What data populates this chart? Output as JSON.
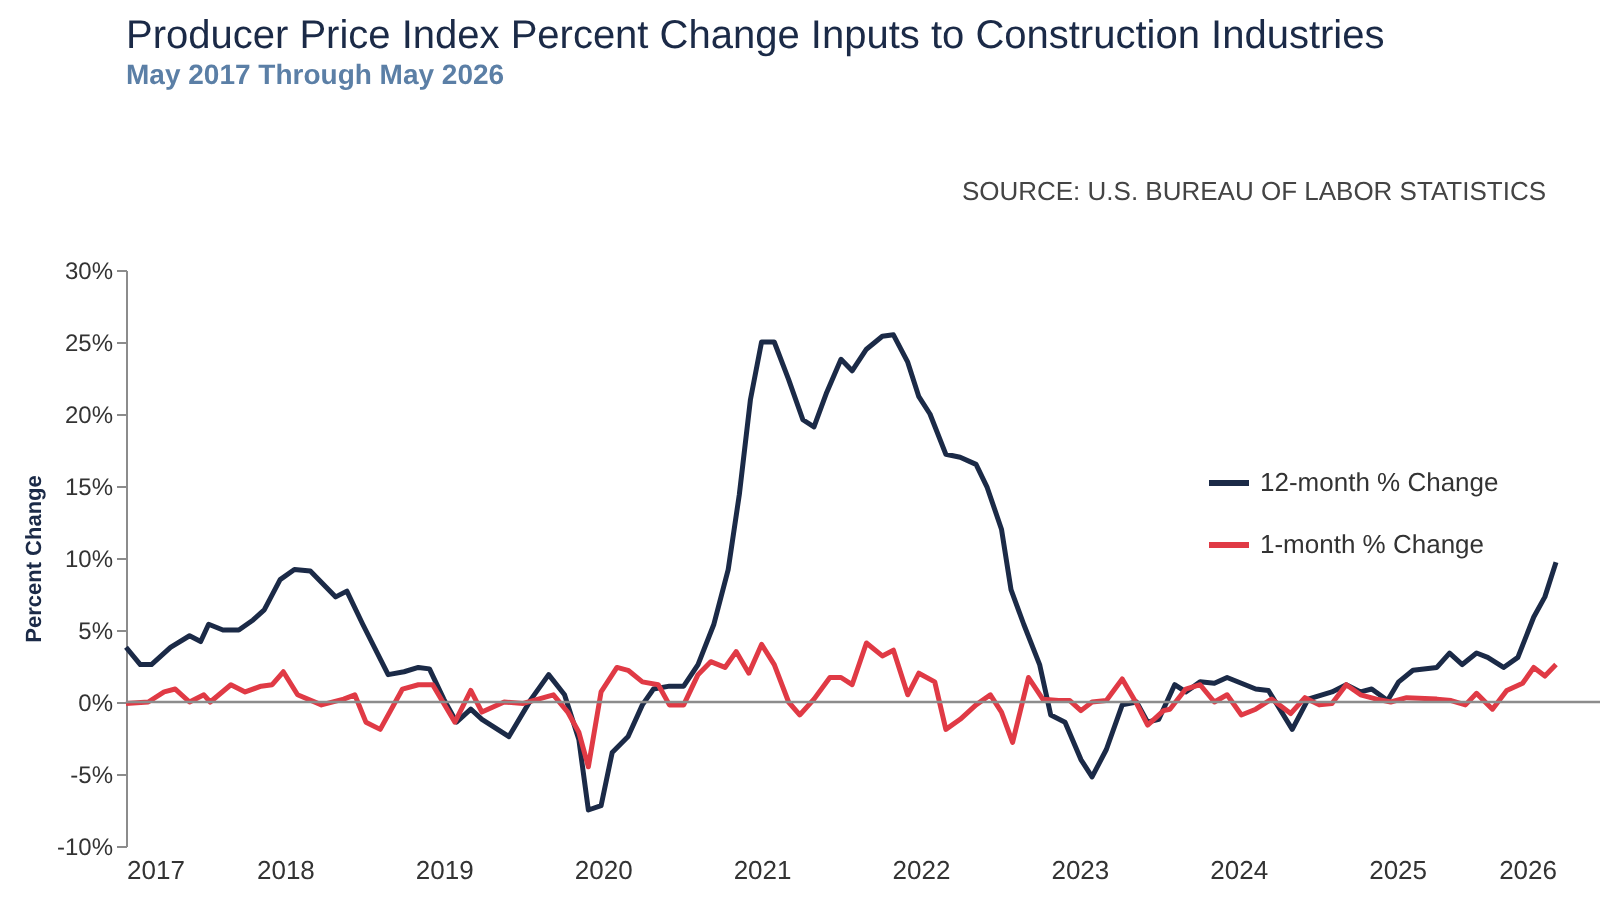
{
  "chart_data": {
    "type": "line",
    "title": "Producer Price Index Percent Change Inputs to Construction Industries",
    "subtitle": "May 2017 Through May 2026",
    "annotations": [
      "SOURCE: U.S. BUREAU OF LABOR STATISTICS"
    ],
    "ylabel": "Percent Change",
    "xlim": [
      2017,
      2026
    ],
    "xticks": [
      2017,
      2018,
      2019,
      2020,
      2021,
      2022,
      2023,
      2024,
      2025,
      2026
    ],
    "ylim": [
      -10,
      30
    ],
    "yticks": [
      {
        "value": -10,
        "label": "-10%"
      },
      {
        "value": -5,
        "label": "-5%"
      },
      {
        "value": 0,
        "label": "0%"
      },
      {
        "value": 5,
        "label": "5%"
      },
      {
        "value": 10,
        "label": "10%"
      },
      {
        "value": 15,
        "label": "15%"
      },
      {
        "value": 20,
        "label": "20%"
      },
      {
        "value": 25,
        "label": "25%"
      },
      {
        "value": 30,
        "label": "30%"
      }
    ],
    "grid": false,
    "legend": "right",
    "marker": "none",
    "line_style": "solid",
    "ref_lines": [
      {
        "axis": "y",
        "value": 0,
        "color": "#8c8c8c"
      }
    ],
    "series": [
      {
        "name": "12-month % Change",
        "color": "#1b2a47",
        "x": [
          2017.0,
          2017.09,
          2017.16,
          2017.28,
          2017.4,
          2017.47,
          2017.52,
          2017.61,
          2017.71,
          2017.8,
          2017.87,
          2017.97,
          2018.06,
          2018.16,
          2018.32,
          2018.39,
          2018.49,
          2018.65,
          2018.75,
          2018.84,
          2018.91,
          2019.0,
          2019.08,
          2019.17,
          2019.24,
          2019.41,
          2019.55,
          2019.66,
          2019.76,
          2019.85,
          2019.91,
          2019.99,
          2020.06,
          2020.16,
          2020.25,
          2020.32,
          2020.42,
          2020.51,
          2020.6,
          2020.7,
          2020.79,
          2020.86,
          2020.93,
          2021.0,
          2021.08,
          2021.17,
          2021.26,
          2021.33,
          2021.41,
          2021.5,
          2021.57,
          2021.66,
          2021.76,
          2021.83,
          2021.92,
          2021.99,
          2022.06,
          2022.16,
          2022.25,
          2022.35,
          2022.42,
          2022.51,
          2022.57,
          2022.65,
          2022.75,
          2022.82,
          2022.91,
          2023.01,
          2023.08,
          2023.17,
          2023.27,
          2023.36,
          2023.43,
          2023.5,
          2023.6,
          2023.67,
          2023.76,
          2023.85,
          2023.93,
          2024.02,
          2024.11,
          2024.19,
          2024.34,
          2024.44,
          2024.59,
          2024.68,
          2024.77,
          2024.84,
          2024.94,
          2025.01,
          2025.1,
          2025.25,
          2025.33,
          2025.41,
          2025.5,
          2025.57,
          2025.67,
          2025.76,
          2025.86,
          2025.93,
          2026.0
        ],
        "values": [
          3.8,
          2.6,
          2.6,
          3.8,
          4.6,
          4.2,
          5.4,
          5.0,
          5.0,
          5.7,
          6.4,
          8.5,
          9.2,
          9.1,
          7.3,
          7.7,
          5.4,
          1.9,
          2.1,
          2.4,
          2.3,
          0.2,
          -1.4,
          -0.5,
          -1.2,
          -2.4,
          0.2,
          1.9,
          0.5,
          -2.6,
          -7.5,
          -7.2,
          -3.5,
          -2.4,
          -0.2,
          0.9,
          1.1,
          1.1,
          2.6,
          5.4,
          9.2,
          14.4,
          21.0,
          25.0,
          25.0,
          22.4,
          19.6,
          19.1,
          21.5,
          23.8,
          23.0,
          24.5,
          25.4,
          25.5,
          23.6,
          21.2,
          20.0,
          17.2,
          17.0,
          16.5,
          14.9,
          12.0,
          7.8,
          5.4,
          2.6,
          -0.9,
          -1.4,
          -4.0,
          -5.2,
          -3.3,
          -0.2,
          0.0,
          -1.4,
          -1.2,
          1.2,
          0.7,
          1.4,
          1.3,
          1.7,
          1.3,
          0.9,
          0.8,
          -1.9,
          0.2,
          0.7,
          1.2,
          0.7,
          0.9,
          0.1,
          1.4,
          2.2,
          2.4,
          3.4,
          2.6,
          3.4,
          3.1,
          2.4,
          3.1,
          5.9,
          7.3,
          9.7
        ]
      },
      {
        "name": "1-month % Change",
        "color": "#e03a45",
        "x": [
          2017.0,
          2017.14,
          2017.24,
          2017.31,
          2017.4,
          2017.49,
          2017.53,
          2017.66,
          2017.75,
          2017.85,
          2017.92,
          2017.99,
          2018.08,
          2018.23,
          2018.37,
          2018.44,
          2018.51,
          2018.6,
          2018.74,
          2018.84,
          2018.93,
          2019.07,
          2019.17,
          2019.24,
          2019.38,
          2019.5,
          2019.69,
          2019.78,
          2019.85,
          2019.91,
          2019.99,
          2020.09,
          2020.16,
          2020.25,
          2020.35,
          2020.42,
          2020.51,
          2020.6,
          2020.68,
          2020.77,
          2020.84,
          2020.92,
          2021.0,
          2021.08,
          2021.17,
          2021.24,
          2021.33,
          2021.43,
          2021.5,
          2021.57,
          2021.66,
          2021.76,
          2021.83,
          2021.92,
          2021.99,
          2022.09,
          2022.16,
          2022.25,
          2022.35,
          2022.44,
          2022.51,
          2022.58,
          2022.68,
          2022.77,
          2022.87,
          2022.94,
          2023.01,
          2023.08,
          2023.17,
          2023.27,
          2023.36,
          2023.43,
          2023.53,
          2023.57,
          2023.67,
          2023.76,
          2023.85,
          2023.93,
          2024.02,
          2024.11,
          2024.21,
          2024.33,
          2024.42,
          2024.51,
          2024.59,
          2024.68,
          2024.77,
          2024.87,
          2024.96,
          2025.06,
          2025.25,
          2025.34,
          2025.43,
          2025.5,
          2025.6,
          2025.69,
          2025.79,
          2025.86,
          2025.93,
          2026.0
        ],
        "values": [
          -0.1,
          0.0,
          0.7,
          0.9,
          0.0,
          0.5,
          0.0,
          1.2,
          0.7,
          1.1,
          1.2,
          2.1,
          0.5,
          -0.2,
          0.2,
          0.5,
          -1.4,
          -1.9,
          0.9,
          1.2,
          1.2,
          -1.4,
          0.8,
          -0.7,
          0.0,
          -0.1,
          0.5,
          -0.7,
          -2.1,
          -4.5,
          0.7,
          2.4,
          2.2,
          1.4,
          1.2,
          -0.2,
          -0.2,
          1.9,
          2.8,
          2.4,
          3.5,
          2.0,
          4.0,
          2.6,
          0.0,
          -0.9,
          0.2,
          1.7,
          1.7,
          1.2,
          4.1,
          3.2,
          3.6,
          0.5,
          2.0,
          1.4,
          -1.9,
          -1.2,
          -0.2,
          0.5,
          -0.7,
          -2.8,
          1.7,
          0.2,
          0.1,
          0.1,
          -0.6,
          0.0,
          0.1,
          1.6,
          -0.1,
          -1.6,
          -0.6,
          -0.5,
          0.9,
          1.2,
          0.0,
          0.5,
          -0.9,
          -0.5,
          0.2,
          -0.8,
          0.3,
          -0.2,
          -0.1,
          1.2,
          0.5,
          0.2,
          0.0,
          0.3,
          0.2,
          0.1,
          -0.2,
          0.6,
          -0.5,
          0.8,
          1.3,
          2.4,
          1.8,
          2.6
        ]
      }
    ]
  }
}
